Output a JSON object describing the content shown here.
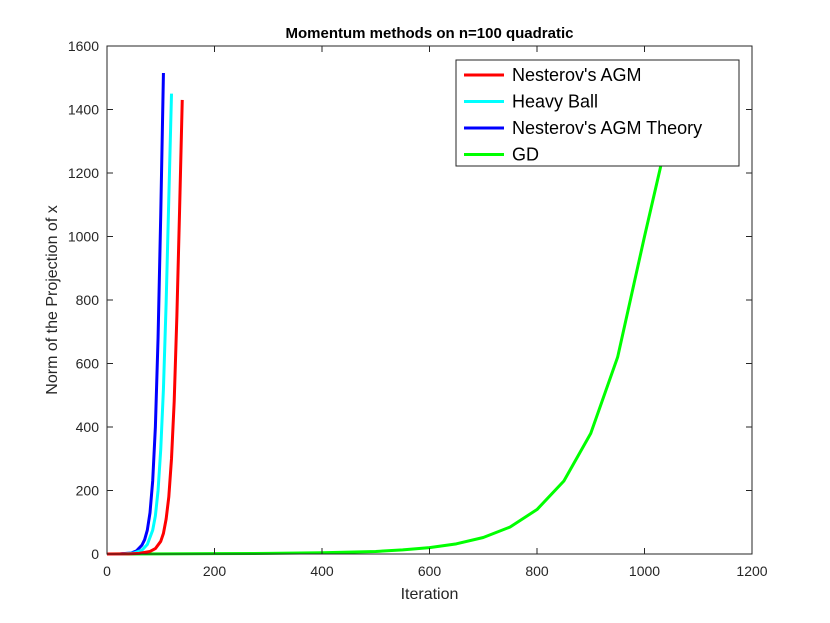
{
  "chart_data": {
    "type": "line",
    "title": "Momentum methods on n=100 quadratic",
    "xlabel": "Iteration",
    "ylabel": "Norm of the Projection of x",
    "xlim": [
      0,
      1200
    ],
    "ylim": [
      0,
      1600
    ],
    "x_ticks": [
      0,
      200,
      400,
      600,
      800,
      1000,
      1200
    ],
    "y_ticks": [
      0,
      200,
      400,
      600,
      800,
      1000,
      1200,
      1400,
      1600
    ],
    "grid": false,
    "legend_position": "top-right",
    "series": [
      {
        "name": "Nesterov's AGM",
        "color": "#ff0000",
        "x": [
          0,
          40,
          60,
          80,
          90,
          100,
          105,
          110,
          115,
          120,
          125,
          130,
          135,
          140
        ],
        "y": [
          0,
          0.5,
          2,
          8,
          17,
          40,
          65,
          110,
          180,
          300,
          480,
          750,
          1080,
          1430
        ]
      },
      {
        "name": "Heavy Ball",
        "color": "#00ffff",
        "x": [
          0,
          30,
          50,
          65,
          75,
          85,
          90,
          95,
          100,
          105,
          110,
          115,
          120
        ],
        "y": [
          0,
          0.5,
          3,
          12,
          30,
          75,
          120,
          200,
          330,
          520,
          790,
          1120,
          1450
        ]
      },
      {
        "name": "Nesterov's AGM Theory",
        "color": "#0000ff",
        "x": [
          0,
          25,
          45,
          55,
          65,
          70,
          75,
          80,
          85,
          90,
          95,
          100,
          105
        ],
        "y": [
          0,
          0.5,
          3,
          10,
          28,
          45,
          75,
          130,
          230,
          400,
          680,
          1070,
          1515
        ]
      },
      {
        "name": "GD",
        "color": "#00ff00",
        "x": [
          0,
          100,
          200,
          300,
          400,
          500,
          550,
          600,
          650,
          700,
          750,
          800,
          850,
          900,
          950,
          1000,
          1030,
          1050
        ],
        "y": [
          0,
          0.5,
          1,
          2,
          4,
          8,
          13,
          20,
          32,
          52,
          85,
          140,
          230,
          380,
          620,
          1000,
          1220,
          1400
        ]
      }
    ]
  }
}
